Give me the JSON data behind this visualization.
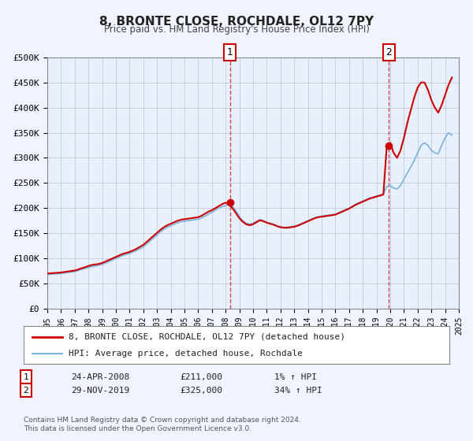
{
  "title": "8, BRONTE CLOSE, ROCHDALE, OL12 7PY",
  "subtitle": "Price paid vs. HM Land Registry's House Price Index (HPI)",
  "bg_color": "#f0f4ff",
  "plot_bg_color": "#ffffff",
  "grid_color": "#cccccc",
  "hpi_line_color": "#7ab3e0",
  "price_line_color": "#cc0000",
  "marker_color": "#cc0000",
  "xlim": [
    1995,
    2025
  ],
  "ylim": [
    0,
    500000
  ],
  "yticks": [
    0,
    50000,
    100000,
    150000,
    200000,
    250000,
    300000,
    350000,
    400000,
    450000,
    500000
  ],
  "ytick_labels": [
    "£0",
    "£50K",
    "£100K",
    "£150K",
    "£200K",
    "£250K",
    "£300K",
    "£350K",
    "£400K",
    "£450K",
    "£500K"
  ],
  "xticks": [
    1995,
    1996,
    1997,
    1998,
    1999,
    2000,
    2001,
    2002,
    2003,
    2004,
    2005,
    2006,
    2007,
    2008,
    2009,
    2010,
    2011,
    2012,
    2013,
    2014,
    2015,
    2016,
    2017,
    2018,
    2019,
    2020,
    2021,
    2022,
    2023,
    2024,
    2025
  ],
  "marker1_x": 2008.31,
  "marker1_y": 211000,
  "marker2_x": 2019.91,
  "marker2_y": 325000,
  "legend_label1": "8, BRONTE CLOSE, ROCHDALE, OL12 7PY (detached house)",
  "legend_label2": "HPI: Average price, detached house, Rochdale",
  "annotation1_label": "1",
  "annotation2_label": "2",
  "table_row1": [
    "1",
    "24-APR-2008",
    "£211,000",
    "1% ↑ HPI"
  ],
  "table_row2": [
    "2",
    "29-NOV-2019",
    "£325,000",
    "34% ↑ HPI"
  ],
  "footer": "Contains HM Land Registry data © Crown copyright and database right 2024.\nThis data is licensed under the Open Government Licence v3.0.",
  "hpi_data": {
    "x": [
      1995.0,
      1995.25,
      1995.5,
      1995.75,
      1996.0,
      1996.25,
      1996.5,
      1996.75,
      1997.0,
      1997.25,
      1997.5,
      1997.75,
      1998.0,
      1998.25,
      1998.5,
      1998.75,
      1999.0,
      1999.25,
      1999.5,
      1999.75,
      2000.0,
      2000.25,
      2000.5,
      2000.75,
      2001.0,
      2001.25,
      2001.5,
      2001.75,
      2002.0,
      2002.25,
      2002.5,
      2002.75,
      2003.0,
      2003.25,
      2003.5,
      2003.75,
      2004.0,
      2004.25,
      2004.5,
      2004.75,
      2005.0,
      2005.25,
      2005.5,
      2005.75,
      2006.0,
      2006.25,
      2006.5,
      2006.75,
      2007.0,
      2007.25,
      2007.5,
      2007.75,
      2008.0,
      2008.25,
      2008.5,
      2008.75,
      2009.0,
      2009.25,
      2009.5,
      2009.75,
      2010.0,
      2010.25,
      2010.5,
      2010.75,
      2011.0,
      2011.25,
      2011.5,
      2011.75,
      2012.0,
      2012.25,
      2012.5,
      2012.75,
      2013.0,
      2013.25,
      2013.5,
      2013.75,
      2014.0,
      2014.25,
      2014.5,
      2014.75,
      2015.0,
      2015.25,
      2015.5,
      2015.75,
      2016.0,
      2016.25,
      2016.5,
      2016.75,
      2017.0,
      2017.25,
      2017.5,
      2017.75,
      2018.0,
      2018.25,
      2018.5,
      2018.75,
      2019.0,
      2019.25,
      2019.5,
      2019.75,
      2020.0,
      2020.25,
      2020.5,
      2020.75,
      2021.0,
      2021.25,
      2021.5,
      2021.75,
      2022.0,
      2022.25,
      2022.5,
      2022.75,
      2023.0,
      2023.25,
      2023.5,
      2023.75,
      2024.0,
      2024.25,
      2024.5
    ],
    "y": [
      68000,
      68500,
      69000,
      69500,
      70000,
      71000,
      72000,
      73000,
      74000,
      76000,
      78000,
      80000,
      82000,
      84000,
      85000,
      86000,
      88000,
      91000,
      94000,
      97000,
      100000,
      103000,
      106000,
      108000,
      110000,
      113000,
      116000,
      119000,
      123000,
      129000,
      135000,
      141000,
      147000,
      153000,
      158000,
      162000,
      165000,
      168000,
      171000,
      173000,
      174000,
      175000,
      176000,
      177000,
      178000,
      181000,
      184000,
      188000,
      192000,
      196000,
      200000,
      203000,
      205000,
      207000,
      203000,
      195000,
      183000,
      175000,
      170000,
      168000,
      170000,
      174000,
      177000,
      175000,
      172000,
      170000,
      168000,
      165000,
      163000,
      162000,
      162000,
      163000,
      164000,
      166000,
      169000,
      172000,
      175000,
      178000,
      181000,
      183000,
      184000,
      185000,
      186000,
      187000,
      188000,
      191000,
      194000,
      197000,
      200000,
      204000,
      208000,
      211000,
      214000,
      217000,
      220000,
      222000,
      224000,
      226000,
      228000,
      243000,
      245000,
      240000,
      238000,
      245000,
      258000,
      270000,
      282000,
      295000,
      310000,
      325000,
      330000,
      325000,
      315000,
      310000,
      308000,
      325000,
      340000,
      350000,
      345000
    ]
  },
  "price_data": {
    "x": [
      1995.0,
      1995.25,
      1995.5,
      1995.75,
      1996.0,
      1996.25,
      1996.5,
      1996.75,
      1997.0,
      1997.25,
      1997.5,
      1997.75,
      1998.0,
      1998.25,
      1998.5,
      1998.75,
      1999.0,
      1999.25,
      1999.5,
      1999.75,
      2000.0,
      2000.25,
      2000.5,
      2000.75,
      2001.0,
      2001.25,
      2001.5,
      2001.75,
      2002.0,
      2002.25,
      2002.5,
      2002.75,
      2003.0,
      2003.25,
      2003.5,
      2003.75,
      2004.0,
      2004.25,
      2004.5,
      2004.75,
      2005.0,
      2005.25,
      2005.5,
      2005.75,
      2006.0,
      2006.25,
      2006.5,
      2006.75,
      2007.0,
      2007.25,
      2007.5,
      2007.75,
      2008.0,
      2008.25,
      2008.5,
      2008.75,
      2009.0,
      2009.25,
      2009.5,
      2009.75,
      2010.0,
      2010.25,
      2010.5,
      2010.75,
      2011.0,
      2011.25,
      2011.5,
      2011.75,
      2012.0,
      2012.25,
      2012.5,
      2012.75,
      2013.0,
      2013.25,
      2013.5,
      2013.75,
      2014.0,
      2014.25,
      2014.5,
      2014.75,
      2015.0,
      2015.25,
      2015.5,
      2015.75,
      2016.0,
      2016.25,
      2016.5,
      2016.75,
      2017.0,
      2017.25,
      2017.5,
      2017.75,
      2018.0,
      2018.25,
      2018.5,
      2018.75,
      2019.0,
      2019.25,
      2019.5,
      2019.75,
      2020.0,
      2020.25,
      2020.5,
      2020.75,
      2021.0,
      2021.25,
      2021.5,
      2021.75,
      2022.0,
      2022.25,
      2022.5,
      2022.75,
      2023.0,
      2023.25,
      2023.5,
      2023.75,
      2024.0,
      2024.25,
      2024.5
    ],
    "y": [
      70000,
      70500,
      71000,
      71500,
      72000,
      73000,
      74000,
      75000,
      76000,
      78000,
      80500,
      82500,
      85000,
      87000,
      88000,
      89000,
      91000,
      94000,
      97000,
      100000,
      103000,
      106000,
      109000,
      111000,
      113000,
      116000,
      119000,
      123000,
      127000,
      133000,
      139000,
      145000,
      151000,
      157000,
      162000,
      166000,
      169000,
      172000,
      175000,
      177000,
      178000,
      179000,
      180000,
      181000,
      182000,
      185000,
      189000,
      193000,
      196000,
      200000,
      204000,
      208000,
      211000,
      207000,
      200000,
      190000,
      180000,
      173000,
      168000,
      166000,
      168000,
      172000,
      176000,
      174000,
      171000,
      169000,
      167000,
      164000,
      162000,
      161000,
      161000,
      162000,
      163000,
      165000,
      168000,
      171000,
      174000,
      177000,
      180000,
      182000,
      183000,
      184000,
      185000,
      186000,
      187000,
      190000,
      193000,
      196000,
      199000,
      203000,
      207000,
      210000,
      213000,
      216000,
      219000,
      221000,
      223000,
      225000,
      227000,
      325000,
      330000,
      310000,
      300000,
      315000,
      340000,
      370000,
      395000,
      420000,
      440000,
      450000,
      450000,
      435000,
      415000,
      400000,
      390000,
      405000,
      425000,
      445000,
      460000
    ]
  }
}
